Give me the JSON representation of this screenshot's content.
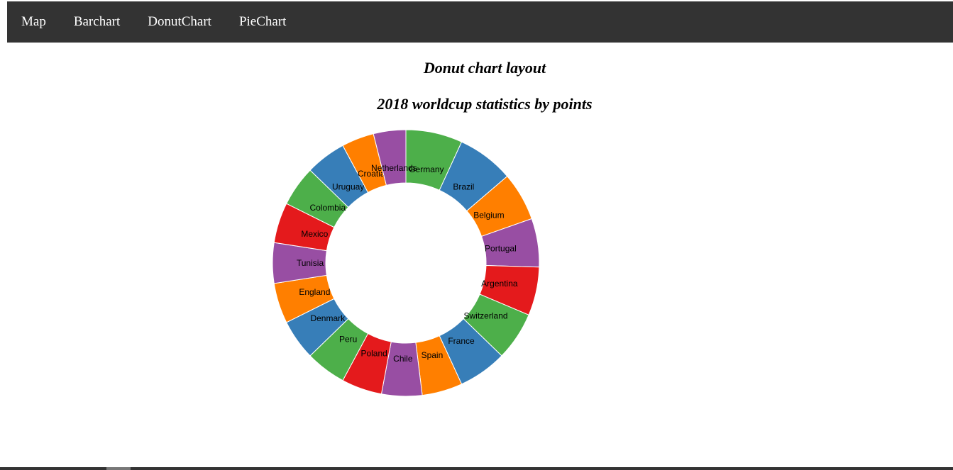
{
  "nav": {
    "items": [
      {
        "label": "Map"
      },
      {
        "label": "Barchart"
      },
      {
        "label": "DonutChart"
      },
      {
        "label": "PieChart"
      }
    ]
  },
  "titles": {
    "layout": "Donut chart layout",
    "stats": "2018 worldcup statistics by points"
  },
  "colors": {
    "green": "#4daf4a",
    "blue": "#377eb8",
    "orange": "#ff7f00",
    "purple": "#984ea3",
    "red": "#e41a1c"
  },
  "chart_data": {
    "type": "pie",
    "donut": true,
    "start": "top",
    "direction": "clockwise",
    "labels": [
      "Germany",
      "Brazil",
      "Belgium",
      "Portugal",
      "Argentina",
      "Switzerland",
      "France",
      "Spain",
      "Chile",
      "Poland",
      "Peru",
      "Denmark",
      "England",
      "Tunisia",
      "Mexico",
      "Colombia",
      "Uruguay",
      "Croatia",
      "Netherlands"
    ],
    "values": [
      7,
      7,
      6,
      6,
      6,
      6,
      6,
      5,
      5,
      5,
      5,
      5,
      5,
      5,
      5,
      5,
      5,
      4,
      4
    ],
    "colors": [
      "#4daf4a",
      "#377eb8",
      "#ff7f00",
      "#984ea3",
      "#e41a1c",
      "#4daf4a",
      "#377eb8",
      "#ff7f00",
      "#984ea3",
      "#e41a1c",
      "#4daf4a",
      "#377eb8",
      "#ff7f00",
      "#984ea3",
      "#e41a1c",
      "#4daf4a",
      "#377eb8",
      "#ff7f00",
      "#984ea3"
    ]
  }
}
